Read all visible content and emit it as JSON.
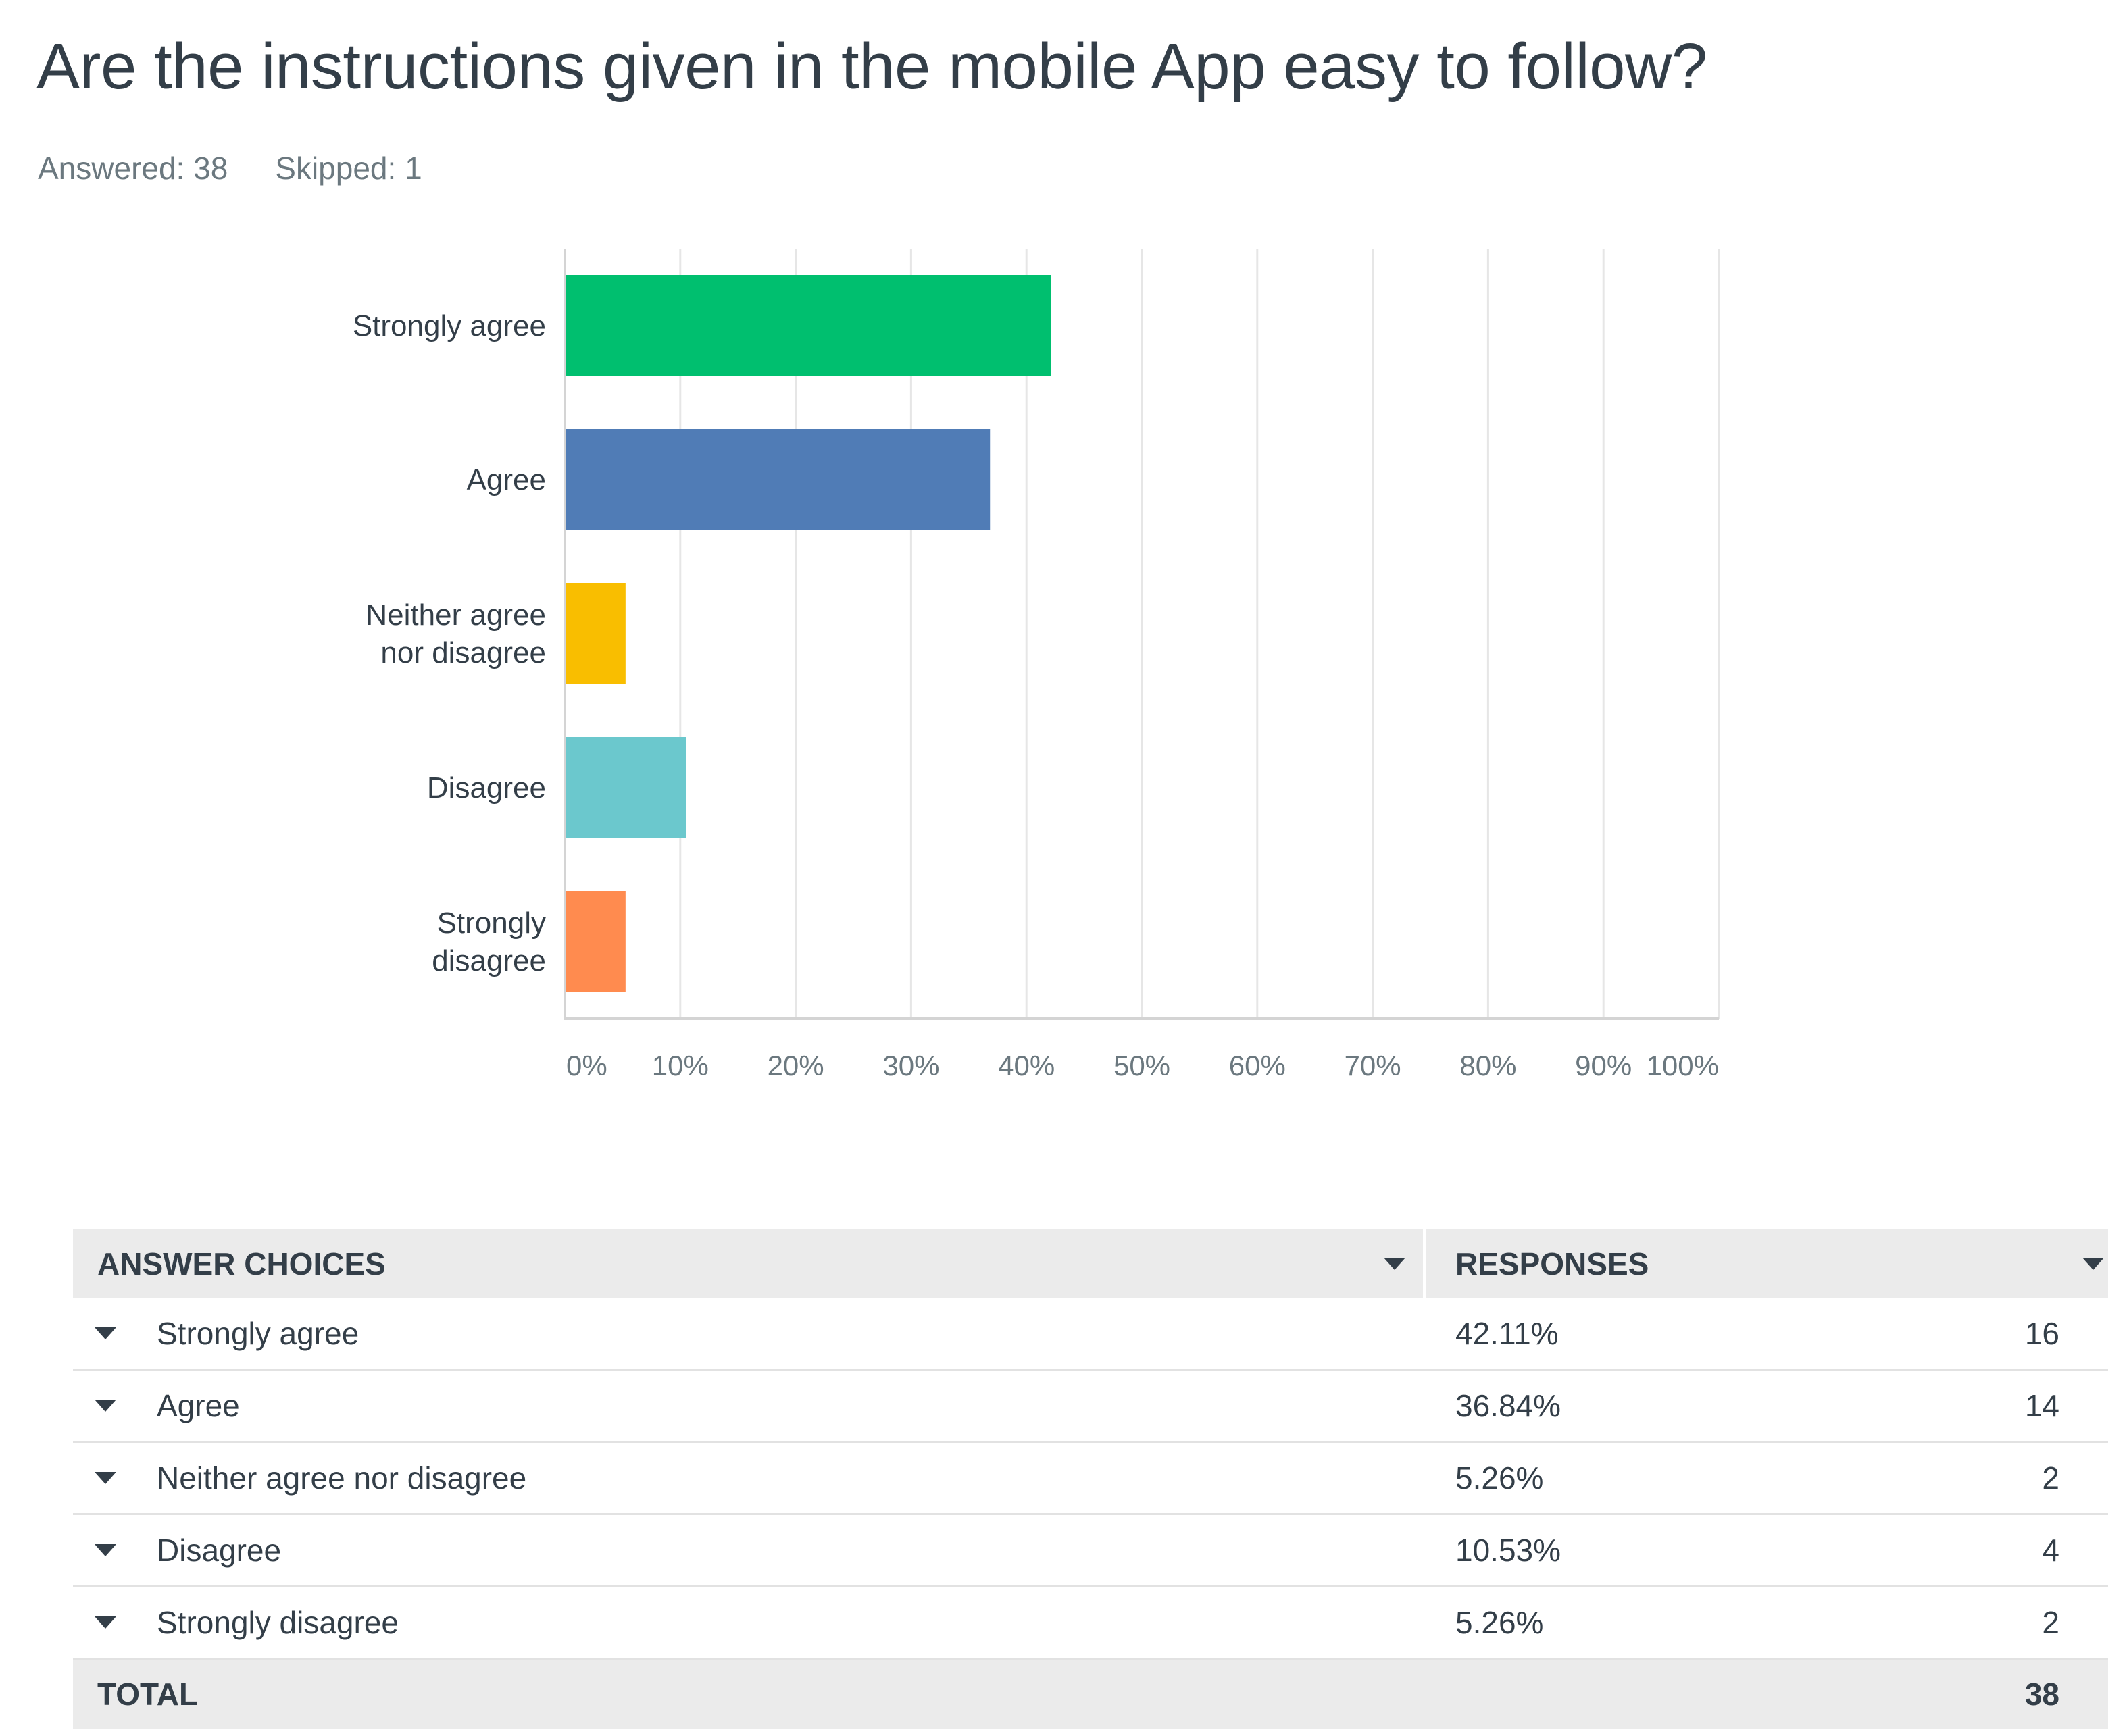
{
  "question": {
    "title": "Are the instructions given in the mobile App easy to follow?",
    "answered_label": "Answered: 38",
    "skipped_label": "Skipped: 1"
  },
  "chart_data": {
    "type": "bar",
    "orientation": "horizontal",
    "categories": [
      "Strongly agree",
      "Agree",
      "Neither agree nor disagree",
      "Disagree",
      "Strongly disagree"
    ],
    "category_label_lines": [
      [
        "Strongly agree"
      ],
      [
        "Agree"
      ],
      [
        "Neither agree",
        "nor disagree"
      ],
      [
        "Disagree"
      ],
      [
        "Strongly",
        "disagree"
      ]
    ],
    "values": [
      42.11,
      36.84,
      5.26,
      10.53,
      5.26
    ],
    "colors": [
      "#00bf6f",
      "#507cb6",
      "#f9be00",
      "#6bc8cd",
      "#ff8b4f"
    ],
    "xlim": [
      0,
      100
    ],
    "xticks": [
      "0%",
      "10%",
      "20%",
      "30%",
      "40%",
      "50%",
      "60%",
      "70%",
      "80%",
      "90%",
      "100%"
    ],
    "grid": true,
    "legend": false
  },
  "table": {
    "headers": {
      "choices": "ANSWER CHOICES",
      "responses": "RESPONSES"
    },
    "rows": [
      {
        "choice": "Strongly agree",
        "percent": "42.11%",
        "count": "16"
      },
      {
        "choice": "Agree",
        "percent": "36.84%",
        "count": "14"
      },
      {
        "choice": "Neither agree nor disagree",
        "percent": "5.26%",
        "count": "2"
      },
      {
        "choice": "Disagree",
        "percent": "10.53%",
        "count": "4"
      },
      {
        "choice": "Strongly disagree",
        "percent": "5.26%",
        "count": "2"
      }
    ],
    "total_label": "TOTAL",
    "total_count": "38"
  }
}
